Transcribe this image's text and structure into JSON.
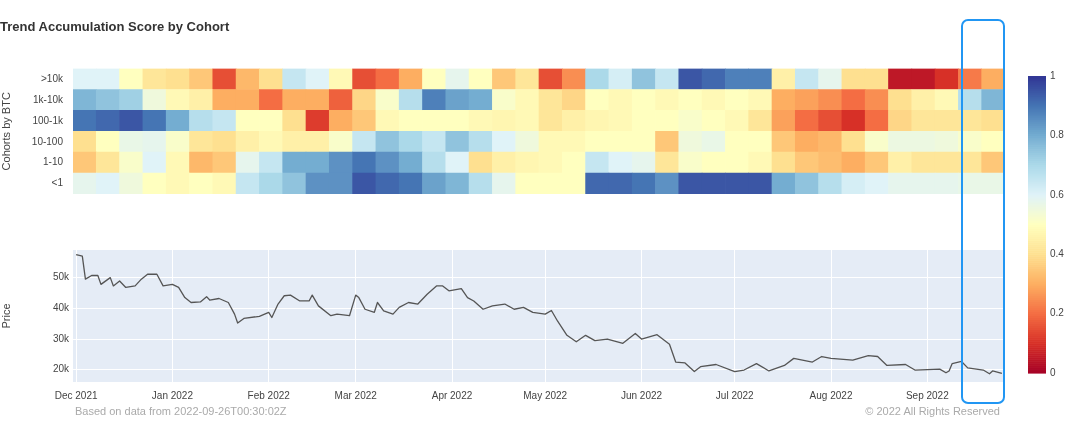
{
  "chart_data": [
    {
      "type": "heatmap",
      "title": "Trend Accumulation Score by Cohort",
      "ylabel": "Cohorts by BTC",
      "tick_labels": "y",
      "categories": [
        null,
        null,
        null,
        null,
        null,
        null,
        null,
        null,
        null,
        null,
        null,
        null,
        null,
        null,
        null,
        null,
        null,
        null,
        null,
        null,
        null,
        null,
        null,
        null,
        null,
        null,
        null,
        null,
        null,
        null,
        null,
        null,
        null,
        null,
        null,
        null,
        null,
        null,
        null,
        null
      ],
      "y_categories": [
        ">10k",
        "1k-10k",
        "100-1k",
        "10-100",
        "1-10",
        "<1"
      ],
      "cells": [
        [
          0.6,
          0.6,
          0.5,
          0.42,
          0.4,
          0.35,
          0.15,
          0.32,
          0.4,
          0.65,
          0.6,
          0.48,
          0.15,
          0.2,
          0.3,
          0.5,
          0.58,
          0.5,
          0.35,
          0.42,
          0.15,
          0.25,
          0.7,
          0.62,
          0.75,
          0.65,
          0.95,
          0.92,
          0.88,
          0.88,
          0.45,
          0.65,
          0.58,
          0.4,
          0.4,
          0.05,
          0.05,
          0.1,
          0.22,
          0.3
        ],
        [
          0.78,
          0.75,
          0.72,
          0.55,
          0.48,
          0.45,
          0.3,
          0.3,
          0.2,
          0.3,
          0.3,
          0.18,
          0.38,
          0.52,
          0.68,
          0.88,
          0.82,
          0.8,
          0.52,
          0.48,
          0.42,
          0.38,
          0.5,
          0.48,
          0.5,
          0.48,
          0.5,
          0.48,
          0.5,
          0.48,
          0.3,
          0.28,
          0.25,
          0.2,
          0.25,
          0.4,
          0.45,
          0.48,
          0.68,
          0.78
        ],
        [
          0.9,
          0.92,
          0.95,
          0.9,
          0.8,
          0.68,
          0.65,
          0.5,
          0.5,
          0.4,
          0.12,
          0.3,
          0.35,
          0.48,
          0.5,
          0.5,
          0.5,
          0.48,
          0.47,
          0.48,
          0.42,
          0.45,
          0.47,
          0.48,
          0.5,
          0.5,
          0.52,
          0.5,
          0.48,
          0.42,
          0.28,
          0.2,
          0.15,
          0.1,
          0.2,
          0.38,
          0.42,
          0.42,
          0.42,
          0.4
        ],
        [
          0.4,
          0.5,
          0.57,
          0.58,
          0.52,
          0.42,
          0.4,
          0.45,
          0.48,
          0.45,
          0.45,
          0.52,
          0.65,
          0.75,
          0.7,
          0.65,
          0.75,
          0.68,
          0.6,
          0.55,
          0.48,
          0.48,
          0.5,
          0.5,
          0.5,
          0.35,
          0.55,
          0.57,
          0.5,
          0.5,
          0.35,
          0.3,
          0.32,
          0.4,
          0.52,
          0.56,
          0.56,
          0.55,
          0.52,
          0.5
        ],
        [
          0.35,
          0.42,
          0.52,
          0.6,
          0.48,
          0.32,
          0.35,
          0.58,
          0.65,
          0.8,
          0.8,
          0.85,
          0.9,
          0.85,
          0.8,
          0.68,
          0.6,
          0.4,
          0.45,
          0.47,
          0.48,
          0.5,
          0.65,
          0.6,
          0.58,
          0.42,
          0.52,
          0.5,
          0.5,
          0.48,
          0.4,
          0.35,
          0.33,
          0.3,
          0.35,
          0.45,
          0.42,
          0.42,
          0.42,
          0.35
        ],
        [
          0.58,
          0.6,
          0.55,
          0.5,
          0.48,
          0.5,
          0.48,
          0.65,
          0.7,
          0.75,
          0.85,
          0.85,
          0.95,
          0.92,
          0.9,
          0.82,
          0.78,
          0.68,
          0.58,
          0.5,
          0.5,
          0.5,
          0.92,
          0.92,
          0.9,
          0.85,
          0.95,
          0.95,
          0.95,
          0.95,
          0.8,
          0.75,
          0.68,
          0.62,
          0.6,
          0.58,
          0.58,
          0.58,
          0.57,
          0.57
        ]
      ],
      "clim": [
        0,
        1
      ],
      "cticks": [
        0,
        0.2,
        0.4,
        0.6,
        0.8,
        1
      ]
    },
    {
      "type": "line",
      "ylabel": "Price",
      "color": "#555555",
      "grid": true,
      "x": [
        "2021-12-01",
        "2021-12-03",
        "2021-12-04",
        "2021-12-06",
        "2021-12-08",
        "2021-12-09",
        "2021-12-12",
        "2021-12-13",
        "2021-12-15",
        "2021-12-17",
        "2021-12-20",
        "2021-12-22",
        "2021-12-24",
        "2021-12-27",
        "2021-12-29",
        "2022-01-01",
        "2022-01-03",
        "2022-01-05",
        "2022-01-07",
        "2022-01-10",
        "2022-01-12",
        "2022-01-13",
        "2022-01-16",
        "2022-01-19",
        "2022-01-21",
        "2022-01-22",
        "2022-01-24",
        "2022-01-29",
        "2022-02-01",
        "2022-02-02",
        "2022-02-04",
        "2022-02-06",
        "2022-02-08",
        "2022-02-11",
        "2022-02-14",
        "2022-02-15",
        "2022-02-17",
        "2022-02-21",
        "2022-02-23",
        "2022-02-27",
        "2022-03-01",
        "2022-03-02",
        "2022-03-04",
        "2022-03-07",
        "2022-03-08",
        "2022-03-10",
        "2022-03-13",
        "2022-03-15",
        "2022-03-18",
        "2022-03-21",
        "2022-03-24",
        "2022-03-27",
        "2022-03-29",
        "2022-03-31",
        "2022-04-04",
        "2022-04-06",
        "2022-04-08",
        "2022-04-11",
        "2022-04-14",
        "2022-04-18",
        "2022-04-21",
        "2022-04-24",
        "2022-04-27",
        "2022-05-01",
        "2022-05-03",
        "2022-05-05",
        "2022-05-08",
        "2022-05-11",
        "2022-05-14",
        "2022-05-17",
        "2022-05-21",
        "2022-05-26",
        "2022-05-30",
        "2022-06-01",
        "2022-06-06",
        "2022-06-10",
        "2022-06-12",
        "2022-06-15",
        "2022-06-18",
        "2022-06-20",
        "2022-06-25",
        "2022-07-01",
        "2022-07-04",
        "2022-07-08",
        "2022-07-12",
        "2022-07-17",
        "2022-07-20",
        "2022-07-26",
        "2022-07-29",
        "2022-08-01",
        "2022-08-08",
        "2022-08-13",
        "2022-08-16",
        "2022-08-19",
        "2022-08-25",
        "2022-08-28",
        "2022-09-05",
        "2022-09-07",
        "2022-09-08",
        "2022-09-09",
        "2022-09-12",
        "2022-09-14",
        "2022-09-19",
        "2022-09-21",
        "2022-09-22",
        "2022-09-25"
      ],
      "values": [
        57500,
        57000,
        49500,
        50700,
        50700,
        47800,
        50000,
        47300,
        48900,
        46800,
        47300,
        49500,
        51100,
        51100,
        47300,
        47800,
        46800,
        43500,
        41900,
        42100,
        43800,
        42700,
        43200,
        41900,
        38100,
        35200,
        36700,
        37400,
        38700,
        37000,
        41400,
        44100,
        44300,
        42400,
        42400,
        44300,
        40800,
        37600,
        38100,
        37600,
        44300,
        43500,
        39700,
        38700,
        41900,
        39200,
        38100,
        40300,
        41900,
        41400,
        44600,
        47300,
        47300,
        45700,
        46400,
        43500,
        42400,
        39700,
        40800,
        41400,
        39700,
        40300,
        38700,
        38100,
        39300,
        35800,
        31200,
        29100,
        31200,
        29500,
        30000,
        28600,
        31800,
        30000,
        31400,
        28300,
        22500,
        22200,
        19400,
        21000,
        21700,
        19400,
        19900,
        22000,
        19600,
        21400,
        23700,
        22500,
        24300,
        23700,
        23100,
        24600,
        24300,
        21400,
        21700,
        19900,
        20200,
        19000,
        19600,
        22000,
        22700,
        20600,
        19900,
        18700,
        19600,
        18800
      ],
      "xlim": [
        "2021-11-30",
        "2022-09-26"
      ],
      "xticks": [
        {
          "value": "2021-12-01",
          "label": "Dec 2021"
        },
        {
          "value": "2022-01-01",
          "label": "Jan 2022"
        },
        {
          "value": "2022-02-01",
          "label": "Feb 2022"
        },
        {
          "value": "2022-03-01",
          "label": "Mar 2022"
        },
        {
          "value": "2022-04-01",
          "label": "Apr 2022"
        },
        {
          "value": "2022-05-01",
          "label": "May 2022"
        },
        {
          "value": "2022-06-01",
          "label": "Jun 2022"
        },
        {
          "value": "2022-07-01",
          "label": "Jul 2022"
        },
        {
          "value": "2022-08-01",
          "label": "Aug 2022"
        },
        {
          "value": "2022-09-01",
          "label": "Sep 2022"
        }
      ],
      "ylim": [
        16000,
        59000
      ],
      "yticks": [
        {
          "value": 20000,
          "label": "20k"
        },
        {
          "value": 30000,
          "label": "30k"
        },
        {
          "value": 40000,
          "label": "40k"
        },
        {
          "value": 50000,
          "label": "50k"
        }
      ],
      "annotations": [
        "Based on data from 2022-09-26T00:30:02Z",
        "© 2022 All Rights Reserved"
      ]
    }
  ]
}
